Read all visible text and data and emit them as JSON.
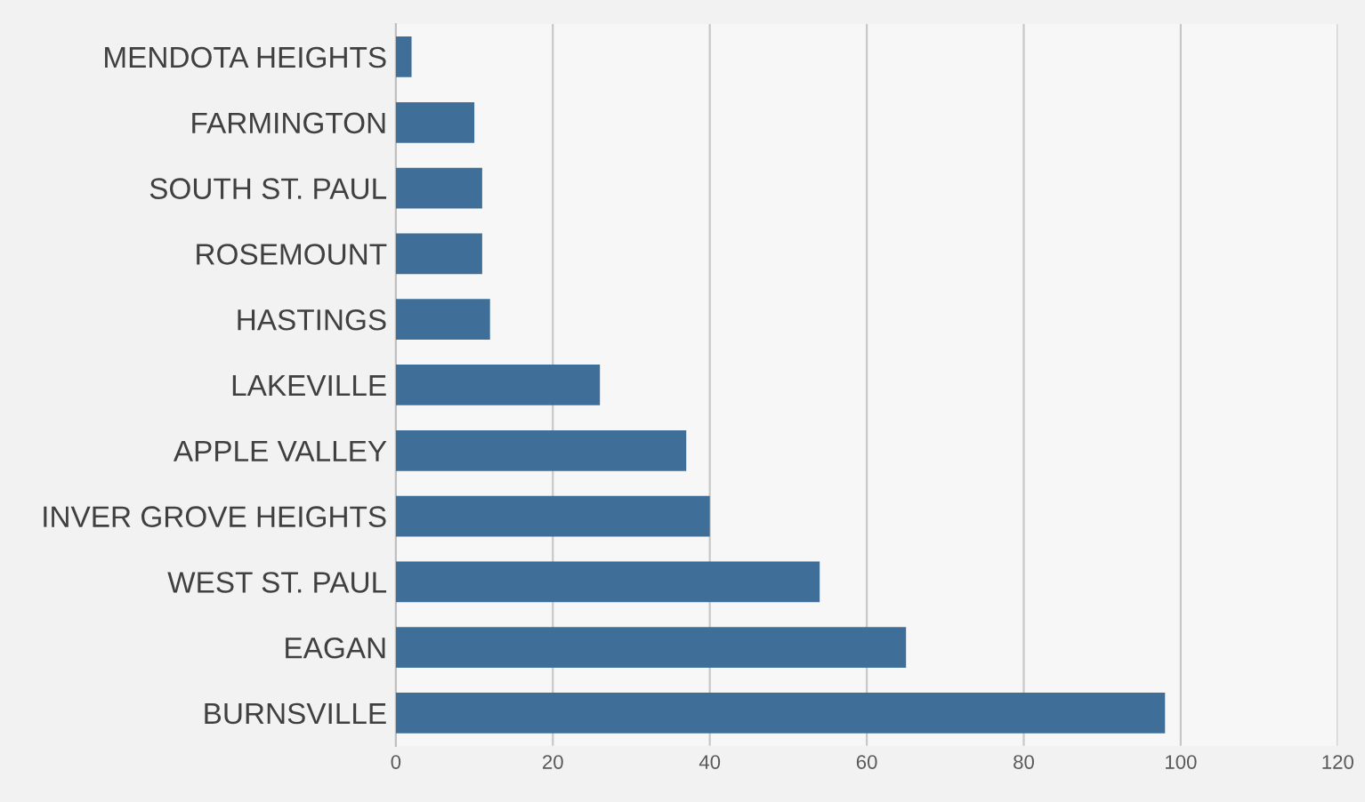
{
  "chart_data": {
    "type": "bar",
    "orientation": "horizontal",
    "categories": [
      "MENDOTA HEIGHTS",
      "FARMINGTON",
      "SOUTH ST. PAUL",
      "ROSEMOUNT",
      "HASTINGS",
      "LAKEVILLE",
      "APPLE VALLEY",
      "INVER GROVE HEIGHTS",
      "WEST ST. PAUL",
      "EAGAN",
      "BURNSVILLE"
    ],
    "values": [
      2,
      10,
      11,
      11,
      12,
      26,
      37,
      40,
      54,
      65,
      98
    ],
    "color": "#3f6f98",
    "xlim": [
      0,
      120
    ],
    "xticks": [
      0,
      20,
      40,
      60,
      80,
      100,
      120
    ],
    "grid": "x"
  }
}
